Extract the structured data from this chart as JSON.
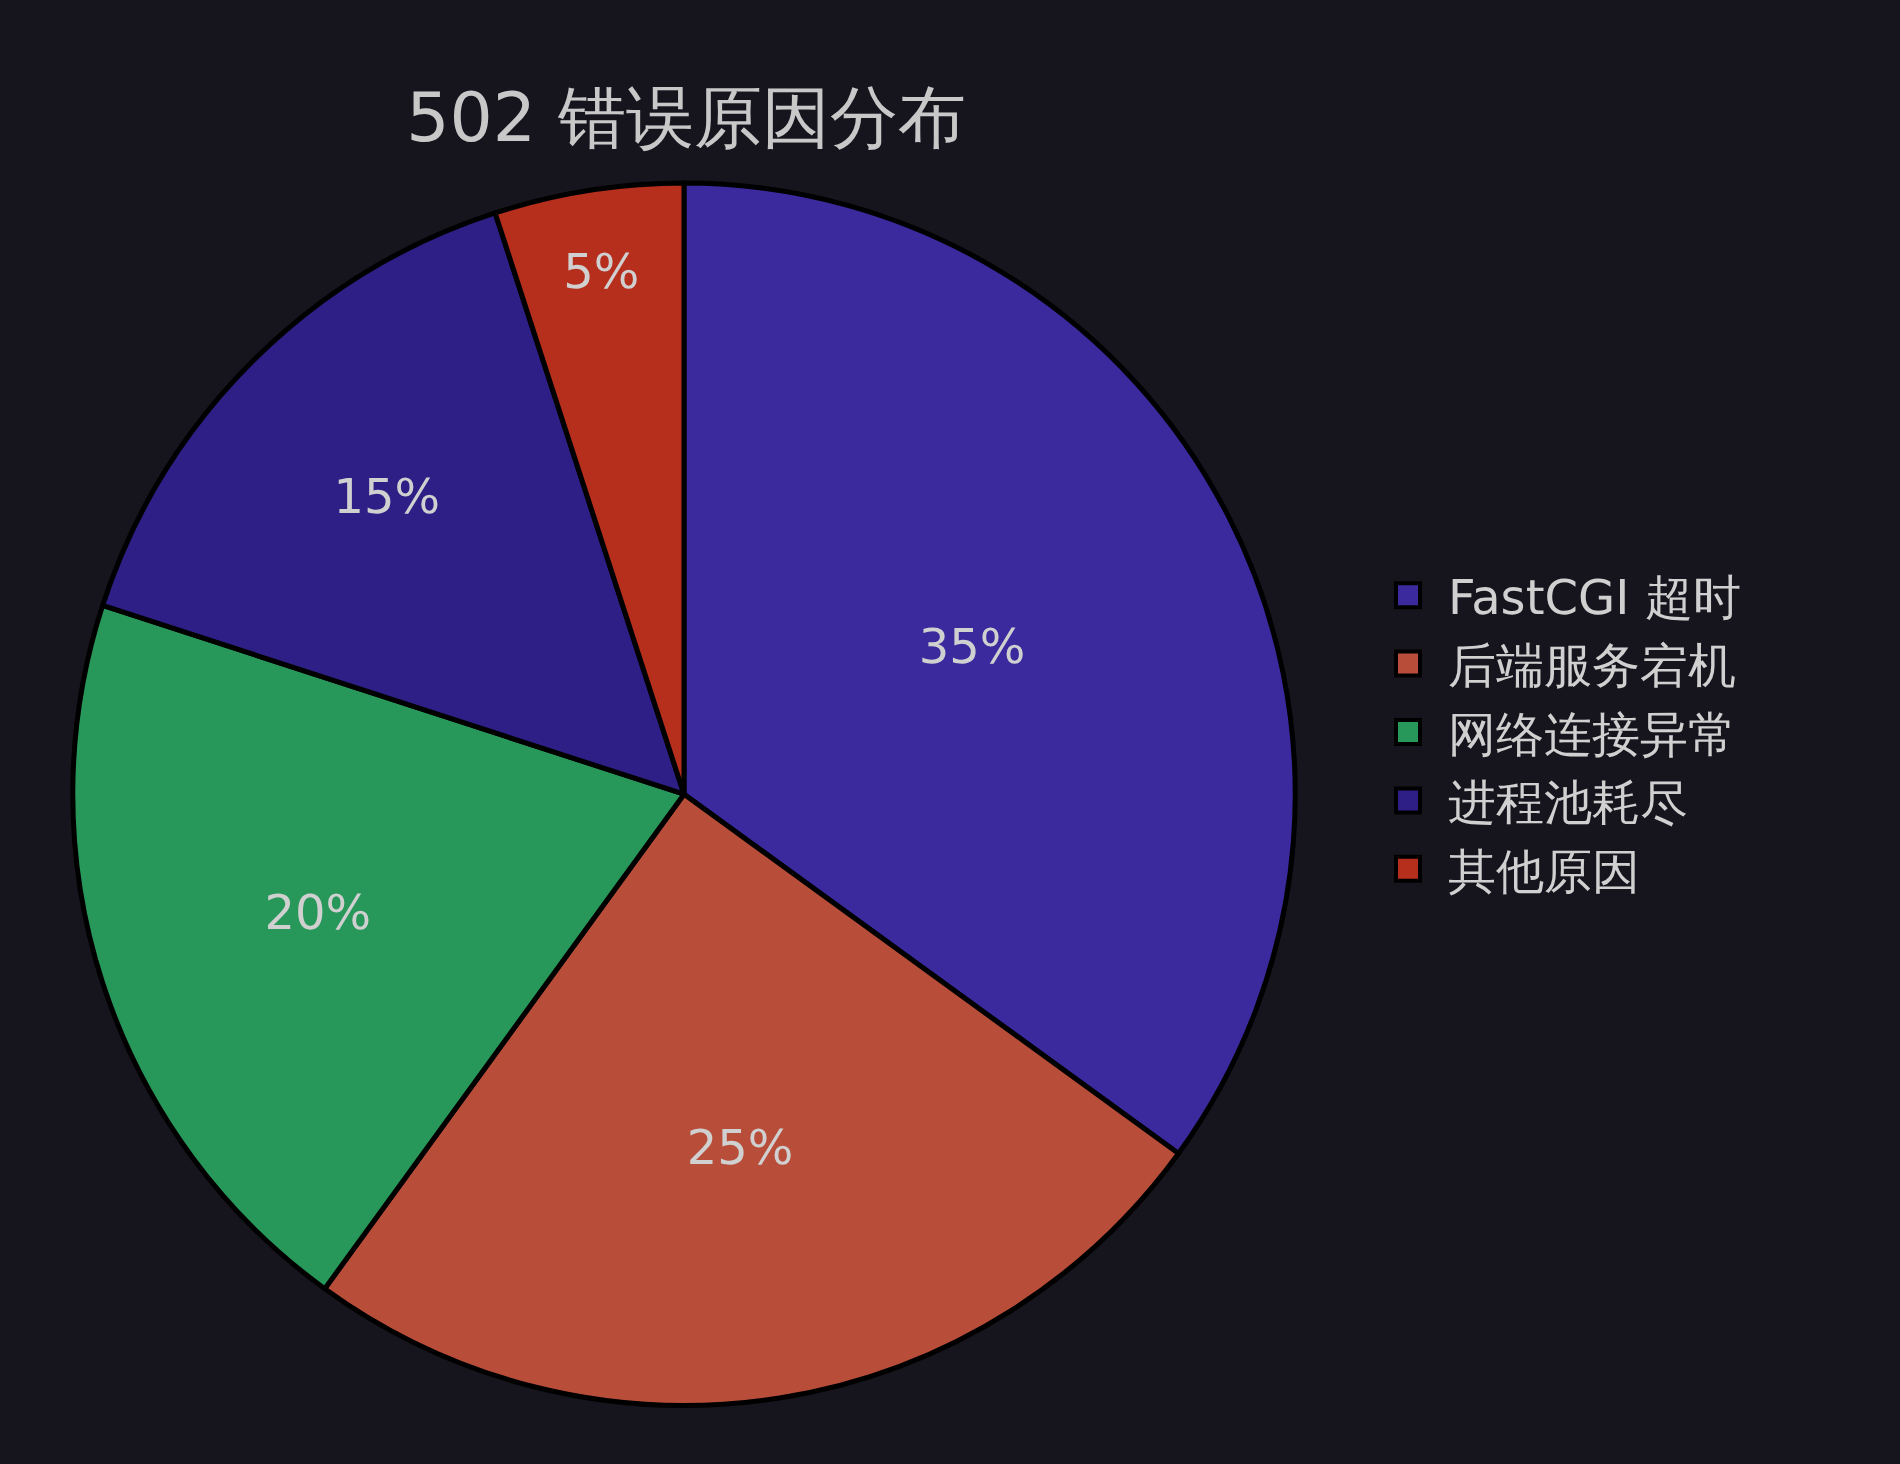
{
  "chart_data": {
    "type": "pie",
    "title": "502 错误原因分布",
    "categories": [
      "FastCGI 超时",
      "后端服务宕机",
      "网络连接异常",
      "进程池耗尽",
      "其他原因"
    ],
    "values": [
      35,
      25,
      20,
      15,
      5
    ],
    "colors": [
      "#3a2a9e",
      "#b84e3a",
      "#27985a",
      "#2d1f86",
      "#b62e1c"
    ],
    "value_labels": [
      "35%",
      "25%",
      "20%",
      "15%",
      "5%"
    ],
    "legend": "right"
  }
}
